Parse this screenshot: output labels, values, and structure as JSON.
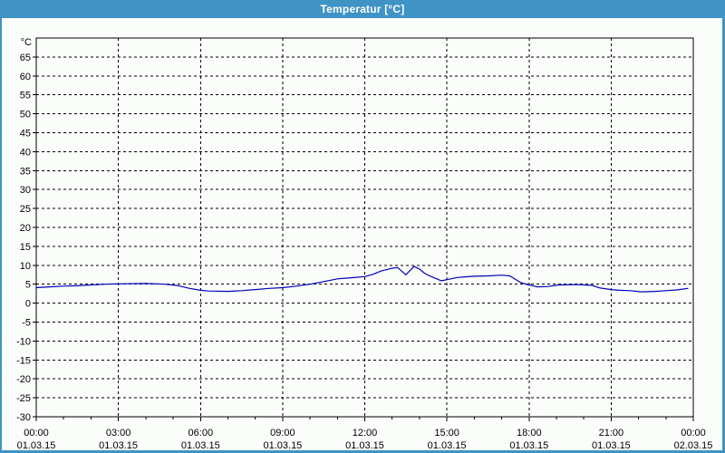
{
  "window": {
    "title": "Temperatur [°C]"
  },
  "colors": {
    "titlebar_bg": "#3f93c5",
    "titlebar_text": "#ffffff",
    "frame_border": "#3f93c5",
    "chart_bg": "#fbfdfb",
    "axis": "#000000",
    "grid": "#000000",
    "tick_label": "#000000",
    "series_line": "#0000bb"
  },
  "chart_data": {
    "type": "line",
    "title": "Temperatur [°C]",
    "grid": {
      "style": "dashed",
      "horizontal": true,
      "vertical": true
    },
    "legend": "none",
    "y_axis": {
      "unit_label": "°C",
      "min": -30,
      "max": 70,
      "tick_step": 5,
      "tick_labels": [
        65,
        60,
        55,
        50,
        45,
        40,
        35,
        30,
        25,
        20,
        15,
        10,
        5,
        0,
        -5,
        -10,
        -15,
        -20,
        -25,
        -30
      ]
    },
    "x_axis": {
      "range_hours": [
        0,
        24
      ],
      "major_step_hours": 3,
      "minor_step_hours": 1,
      "ticks": [
        {
          "hour": 0,
          "time": "00:00",
          "date": "01.03.15"
        },
        {
          "hour": 3,
          "time": "03:00",
          "date": "01.03.15"
        },
        {
          "hour": 6,
          "time": "06:00",
          "date": "01.03.15"
        },
        {
          "hour": 9,
          "time": "09:00",
          "date": "01.03.15"
        },
        {
          "hour": 12,
          "time": "12:00",
          "date": "01.03.15"
        },
        {
          "hour": 15,
          "time": "15:00",
          "date": "01.03.15"
        },
        {
          "hour": 18,
          "time": "18:00",
          "date": "01.03.15"
        },
        {
          "hour": 21,
          "time": "21:00",
          "date": "01.03.15"
        },
        {
          "hour": 24,
          "time": "00:00",
          "date": "02.03.15"
        }
      ]
    },
    "series": [
      {
        "name": "Temperatur",
        "color": "#0000bb",
        "points": [
          [
            0.0,
            4.1
          ],
          [
            0.5,
            4.3
          ],
          [
            1.0,
            4.5
          ],
          [
            1.5,
            4.6
          ],
          [
            2.0,
            4.8
          ],
          [
            2.5,
            5.0
          ],
          [
            3.0,
            5.1
          ],
          [
            4.0,
            5.2
          ],
          [
            4.7,
            5.0
          ],
          [
            5.2,
            4.6
          ],
          [
            5.6,
            3.9
          ],
          [
            6.0,
            3.4
          ],
          [
            6.3,
            3.2
          ],
          [
            7.0,
            3.1
          ],
          [
            7.5,
            3.3
          ],
          [
            8.0,
            3.6
          ],
          [
            8.5,
            3.9
          ],
          [
            9.0,
            4.1
          ],
          [
            9.5,
            4.5
          ],
          [
            10.0,
            5.0
          ],
          [
            10.5,
            5.7
          ],
          [
            11.0,
            6.4
          ],
          [
            11.5,
            6.7
          ],
          [
            12.0,
            7.0
          ],
          [
            12.3,
            7.6
          ],
          [
            12.6,
            8.5
          ],
          [
            13.0,
            9.2
          ],
          [
            13.2,
            9.4
          ],
          [
            13.5,
            7.5
          ],
          [
            13.8,
            9.7
          ],
          [
            14.0,
            9.0
          ],
          [
            14.2,
            7.8
          ],
          [
            14.5,
            6.8
          ],
          [
            14.8,
            5.9
          ],
          [
            15.0,
            6.2
          ],
          [
            15.4,
            6.8
          ],
          [
            16.0,
            7.1
          ],
          [
            16.5,
            7.2
          ],
          [
            17.0,
            7.4
          ],
          [
            17.3,
            7.2
          ],
          [
            17.5,
            6.3
          ],
          [
            17.7,
            5.4
          ],
          [
            18.0,
            4.8
          ],
          [
            18.3,
            4.3
          ],
          [
            18.7,
            4.4
          ],
          [
            19.1,
            4.8
          ],
          [
            19.8,
            4.9
          ],
          [
            20.3,
            4.7
          ],
          [
            20.6,
            4.0
          ],
          [
            21.0,
            3.6
          ],
          [
            21.3,
            3.4
          ],
          [
            21.7,
            3.3
          ],
          [
            22.1,
            3.0
          ],
          [
            22.6,
            3.1
          ],
          [
            23.0,
            3.3
          ],
          [
            23.4,
            3.5
          ],
          [
            23.8,
            3.9
          ]
        ]
      }
    ]
  }
}
